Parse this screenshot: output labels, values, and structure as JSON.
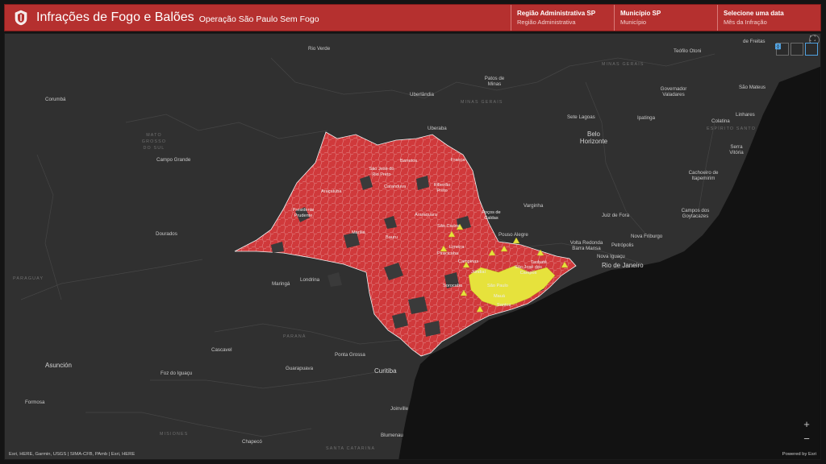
{
  "header": {
    "title": "Infrações de Fogo e Balões",
    "subtitle": "Operação São Paulo Sem Fogo",
    "filters": [
      {
        "label": "Região Administrativa SP",
        "value": "Região Administrativa"
      },
      {
        "label": "Município SP",
        "value": "Município"
      },
      {
        "label": "Selecione uma data",
        "value": "Mês da Infração"
      }
    ]
  },
  "map": {
    "places": {
      "rio_verde": "Rio Verde",
      "teofilo_otoni": "Teófilo Otoni",
      "de_freitas": "de Freitas",
      "patos_de_minas": "Patos de Minas",
      "sao_mateus": "São Mateus",
      "corumba": "Corumbá",
      "uberlandia": "Uberlândia",
      "governador_valadares": "Governador Valadares",
      "linhares": "Linhares",
      "sete_lagoas": "Sete Lagoas",
      "ipatinga": "Ipatinga",
      "colatina": "Colatina",
      "uberaba": "Uberaba",
      "belo_horizonte": "Belo Horizonte",
      "serra_vitoria": "Serra Vitória",
      "campo_grande": "Campo Grande",
      "cachoeiro": "Cachoeiro de Itapemirim",
      "varginha": "Varginha",
      "campos": "Campos dos Goytacazes",
      "juiz_de_fora": "Juiz de Fora",
      "dourados": "Dourados",
      "pouso_alegre": "Pouso Alegre",
      "nova_friburgo": "Nova Friburgo",
      "volta_redonda": "Volta Redonda Barra Mansa",
      "petropolis": "Petrópolis",
      "nova_iguacu": "Nova Iguaçu",
      "rio_de_janeiro": "Rio de Janeiro",
      "maringa": "Maringá",
      "londrina": "Londrina",
      "cascavel": "Cascavel",
      "ponta_grossa": "Ponta Grossa",
      "asuncion": "Asunción",
      "guarapuava": "Guarapuava",
      "curitiba": "Curitiba",
      "foz_do_iguacu": "Foz do Iguaçu",
      "formosa": "Formosa",
      "joinville": "Joinville",
      "blumenau": "Blumenau",
      "chapeco": "Chapecó"
    },
    "regions": {
      "minas_gerais": "MINAS GERAIS",
      "minas_gerais_2": "MINAS GERAIS",
      "mato_grosso_do_sul": "MATO GROSSO DO SUL",
      "espirito_santo": "ESPÍRITO SANTO",
      "paraguay": "PARAGUAY",
      "parana": "PARANÁ",
      "misiones": "MISIONES",
      "santa_catarina": "SANTA CATARINA"
    },
    "sp_cities": {
      "barretos": "Barretos",
      "franca": "Franca",
      "sao_jose_rio_preto": "São José do Rio Preto",
      "catanduva": "Catanduva",
      "ribeirao_preto": "Ribeirão Preto",
      "aracatuba": "Araçatuba",
      "araraquara": "Araraquara",
      "sao_carlos": "São Carlos",
      "pocos_de_caldas": "Poços de Caldas",
      "presidente_prudente": "Presidente Prudente",
      "marilia": "Marília",
      "bauru": "Bauru",
      "limeira": "Limeira",
      "piracicaba": "Piracicaba",
      "campinas": "Campinas",
      "jundiai": "Jundiaí",
      "sorocaba": "Sorocaba",
      "sao_paulo": "São Paulo",
      "sao_jose_campos": "São José dos Campos",
      "taubate": "Taubaté",
      "maua": "Mauá",
      "santos": "Santos"
    },
    "legend_colors": {
      "municipality_fill": "#d0393b",
      "infraction_marker": "#e6e23c"
    },
    "widgets": [
      "home-icon",
      "list-icon",
      "grid-icon"
    ],
    "zoom_in": "+",
    "zoom_out": "−",
    "attribution": "Esri, HERE, Garmin, USGS | SIMA-CFB, PAmb | Esri, HERE",
    "powered_by": "Powered by Esri"
  }
}
